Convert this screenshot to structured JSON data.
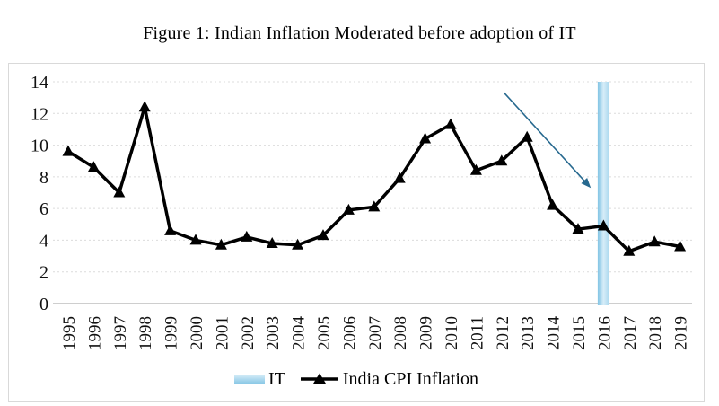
{
  "figure": {
    "title": "Figure 1: Indian Inflation Moderated before adoption of IT"
  },
  "chart_data": {
    "type": "line",
    "title": "Figure 1: Indian Inflation Moderated before adoption of IT",
    "x": [
      1995,
      1996,
      1997,
      1998,
      1999,
      2000,
      2001,
      2002,
      2003,
      2004,
      2005,
      2006,
      2007,
      2008,
      2009,
      2010,
      2011,
      2012,
      2013,
      2014,
      2015,
      2016,
      2017,
      2018,
      2019
    ],
    "series": [
      {
        "name": "India CPI Inflation",
        "values": [
          9.6,
          8.6,
          7.0,
          12.4,
          4.6,
          4.0,
          3.7,
          4.2,
          3.8,
          3.7,
          4.3,
          5.9,
          6.1,
          7.9,
          10.4,
          11.3,
          8.4,
          9.0,
          10.5,
          6.2,
          4.7,
          4.9,
          3.3,
          3.9,
          3.6
        ],
        "color": "#000000",
        "marker": "triangle"
      }
    ],
    "band": {
      "label": "IT",
      "x": 2016,
      "y_from": 0,
      "y_to": 14,
      "gradient": [
        "#82c4e4",
        "#d7edf8",
        "#a8d7ee"
      ]
    },
    "annotation_arrow": {
      "from": {
        "x": 2012.1,
        "y": 13.3
      },
      "to": {
        "x": 2015.5,
        "y": 7.3
      },
      "color": "#27698f"
    },
    "xlabel": "",
    "ylabel": "",
    "ylim": [
      0,
      14
    ],
    "yticks": [
      0,
      2,
      4,
      6,
      8,
      10,
      12,
      14
    ],
    "grid": "horizontal-dotted",
    "legend_position": "bottom",
    "legend": [
      {
        "label": "IT",
        "swatch": "band"
      },
      {
        "label": "India CPI Inflation",
        "swatch": "line-triangle"
      }
    ]
  },
  "colors": {
    "line": "#000000",
    "grid": "#dcdcdc",
    "axis": "#b0b0b0",
    "box_border": "#d9d9d9",
    "arrow": "#27698f",
    "band_light": "#d7edf8",
    "band_dark": "#82c4e4",
    "background": "#ffffff",
    "text": "#111111"
  }
}
